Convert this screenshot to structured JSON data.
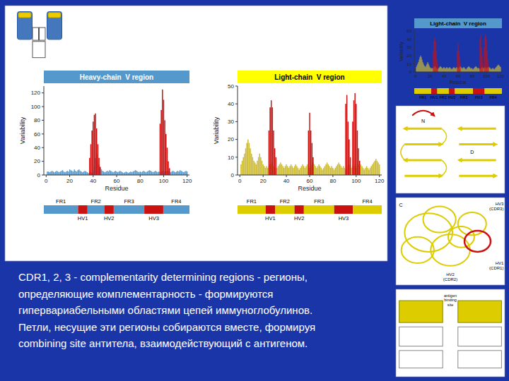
{
  "chart_data": [
    {
      "type": "bar",
      "title": "Heavy-chain  V region",
      "x_label": "Residue",
      "y_label": "Variability",
      "x": [
        1,
        2,
        3,
        4,
        5,
        6,
        7,
        8,
        9,
        10,
        11,
        12,
        13,
        14,
        15,
        16,
        17,
        18,
        19,
        20,
        21,
        22,
        23,
        24,
        25,
        26,
        27,
        28,
        29,
        30,
        31,
        32,
        33,
        34,
        35,
        36,
        37,
        38,
        39,
        40,
        41,
        42,
        43,
        44,
        45,
        46,
        47,
        48,
        49,
        50,
        51,
        52,
        53,
        54,
        55,
        56,
        57,
        58,
        59,
        60,
        61,
        62,
        63,
        64,
        65,
        66,
        67,
        68,
        69,
        70,
        71,
        72,
        73,
        74,
        75,
        76,
        77,
        78,
        79,
        80,
        81,
        82,
        83,
        84,
        85,
        86,
        87,
        88,
        89,
        90,
        91,
        92,
        93,
        94,
        95,
        96,
        97,
        98,
        99,
        100,
        101,
        102,
        103,
        104,
        105,
        106,
        107,
        108,
        109,
        110,
        111,
        112,
        113,
        114,
        115,
        116,
        117,
        118,
        119,
        120
      ],
      "series": [
        {
          "color": "#5599cc",
          "values": [
            5,
            5,
            4,
            5,
            6,
            5,
            4,
            5,
            6,
            5,
            4,
            5,
            6,
            7,
            5,
            4,
            5,
            6,
            5,
            8,
            7,
            6,
            5,
            8,
            6,
            5,
            7,
            8,
            6,
            5,
            4,
            5,
            6,
            5,
            4,
            3,
            5,
            4,
            3,
            5,
            13,
            25,
            30,
            20,
            15,
            10,
            8,
            6,
            5,
            4,
            5,
            6,
            5,
            7,
            6,
            5,
            4,
            5,
            6,
            5,
            4,
            5,
            6,
            5,
            4,
            3,
            4,
            5,
            4,
            3,
            4,
            5,
            4,
            5,
            6,
            7,
            6,
            5,
            4,
            5,
            4,
            5,
            6,
            5,
            4,
            5,
            6,
            7,
            6,
            5,
            4,
            5,
            6,
            5,
            4,
            5,
            4,
            5,
            6,
            5,
            5,
            6,
            5,
            6,
            5,
            4,
            5,
            6,
            5,
            4,
            5,
            6,
            5,
            7,
            6,
            5,
            4,
            5,
            6,
            5
          ]
        },
        {
          "color": "#cc1111",
          "values": [
            0,
            0,
            0,
            0,
            0,
            0,
            0,
            0,
            0,
            0,
            0,
            0,
            0,
            0,
            0,
            0,
            0,
            0,
            0,
            0,
            0,
            0,
            0,
            0,
            0,
            0,
            0,
            0,
            0,
            0,
            0,
            0,
            0,
            0,
            0,
            0,
            25,
            45,
            65,
            78,
            88,
            90,
            68,
            45,
            25,
            12,
            0,
            0,
            0,
            0,
            0,
            0,
            0,
            0,
            0,
            0,
            0,
            0,
            0,
            0,
            0,
            0,
            0,
            0,
            0,
            0,
            0,
            0,
            0,
            0,
            0,
            0,
            0,
            0,
            0,
            0,
            0,
            0,
            0,
            0,
            0,
            0,
            0,
            0,
            0,
            0,
            0,
            0,
            0,
            0,
            0,
            0,
            0,
            0,
            0,
            0,
            75,
            95,
            125,
            110,
            80,
            60,
            40,
            20,
            10,
            0,
            0,
            0,
            0,
            0,
            0,
            0,
            0,
            0,
            0,
            0,
            0,
            0,
            0,
            0
          ]
        }
      ],
      "xlim": [
        -2,
        122
      ],
      "ylim": [
        0,
        130
      ],
      "xticks": [
        0,
        20,
        40,
        60,
        80,
        100,
        120
      ],
      "yticks": [
        0,
        20,
        40,
        60,
        80,
        100,
        120
      ]
    },
    {
      "type": "bar",
      "title": "Light-chain  V region",
      "x_label": "Residue",
      "y_label": "Variability",
      "x": [
        1,
        2,
        3,
        4,
        5,
        6,
        7,
        8,
        9,
        10,
        11,
        12,
        13,
        14,
        15,
        16,
        17,
        18,
        19,
        20,
        21,
        22,
        23,
        24,
        25,
        26,
        27,
        28,
        29,
        30,
        31,
        32,
        33,
        34,
        35,
        36,
        37,
        38,
        39,
        40,
        41,
        42,
        43,
        44,
        45,
        46,
        47,
        48,
        49,
        50,
        51,
        52,
        53,
        54,
        55,
        56,
        57,
        58,
        59,
        60,
        61,
        62,
        63,
        64,
        65,
        66,
        67,
        68,
        69,
        70,
        71,
        72,
        73,
        74,
        75,
        76,
        77,
        78,
        79,
        80,
        81,
        82,
        83,
        84,
        85,
        86,
        87,
        88,
        89,
        90,
        91,
        92,
        93,
        94,
        95,
        96,
        97,
        98,
        99,
        100,
        101,
        102,
        103,
        104,
        105,
        106,
        107,
        108,
        109,
        110,
        111,
        112,
        113,
        114,
        115,
        116,
        117,
        118,
        119,
        120
      ],
      "series": [
        {
          "color": "#ccbb33",
          "values": [
            6,
            8,
            10,
            12,
            15,
            18,
            20,
            18,
            15,
            12,
            10,
            8,
            7,
            6,
            8,
            10,
            12,
            10,
            8,
            6,
            5,
            4,
            5,
            4,
            5,
            6,
            7,
            6,
            5,
            4,
            3,
            4,
            5,
            6,
            7,
            6,
            5,
            4,
            5,
            6,
            5,
            4,
            5,
            6,
            5,
            4,
            5,
            6,
            5,
            4,
            3,
            4,
            5,
            6,
            5,
            4,
            5,
            6,
            5,
            4,
            5,
            6,
            7,
            6,
            5,
            4,
            5,
            6,
            5,
            4,
            3,
            4,
            5,
            6,
            7,
            6,
            5,
            4,
            5,
            4,
            3,
            4,
            5,
            6,
            7,
            6,
            5,
            4,
            5,
            4,
            3,
            4,
            5,
            6,
            5,
            4,
            5,
            6,
            5,
            4,
            5,
            6,
            5,
            6,
            5,
            4,
            3,
            4,
            5,
            4,
            3,
            4,
            5,
            6,
            7,
            8,
            9,
            8,
            7,
            6
          ]
        },
        {
          "color": "#cc1111",
          "values": [
            0,
            0,
            0,
            0,
            0,
            0,
            0,
            0,
            0,
            0,
            0,
            0,
            0,
            0,
            0,
            0,
            0,
            0,
            0,
            0,
            0,
            0,
            0,
            0,
            25,
            38,
            42,
            38,
            25,
            15,
            10,
            0,
            0,
            0,
            0,
            0,
            0,
            0,
            0,
            0,
            0,
            0,
            0,
            0,
            0,
            0,
            0,
            0,
            0,
            0,
            0,
            0,
            0,
            0,
            0,
            0,
            0,
            0,
            25,
            35,
            25,
            18,
            10,
            0,
            0,
            0,
            0,
            0,
            0,
            0,
            0,
            0,
            0,
            0,
            0,
            0,
            0,
            0,
            0,
            0,
            0,
            0,
            0,
            0,
            0,
            0,
            0,
            0,
            0,
            0,
            40,
            45,
            30,
            20,
            10,
            0,
            30,
            42,
            46,
            40,
            25,
            15,
            8,
            0,
            0,
            0,
            0,
            0,
            0,
            0,
            0,
            0,
            0,
            0,
            0,
            0,
            0,
            0,
            0,
            0
          ]
        }
      ],
      "xlim": [
        -2,
        122
      ],
      "ylim": [
        0,
        50
      ],
      "xticks": [
        0,
        20,
        40,
        60,
        80,
        100,
        120
      ],
      "yticks": [
        0,
        10,
        20,
        30,
        40,
        50
      ]
    },
    {
      "type": "bar",
      "title": "Light-chain  V region",
      "x_label": "Residue",
      "y_label": "Variability",
      "x": [
        1,
        2,
        3,
        4,
        5,
        6,
        7,
        8,
        9,
        10,
        11,
        12,
        13,
        14,
        15,
        16,
        17,
        18,
        19,
        20,
        21,
        22,
        23,
        24,
        25,
        26,
        27,
        28,
        29,
        30,
        31,
        32,
        33,
        34,
        35,
        36,
        37,
        38,
        39,
        40,
        41,
        42,
        43,
        44,
        45,
        46,
        47,
        48,
        49,
        50,
        51,
        52,
        53,
        54,
        55,
        56,
        57,
        58,
        59,
        60,
        61,
        62,
        63,
        64,
        65,
        66,
        67,
        68,
        69,
        70,
        71,
        72,
        73,
        74,
        75,
        76,
        77,
        78,
        79,
        80,
        81,
        82,
        83,
        84,
        85,
        86,
        87,
        88,
        89,
        90,
        91,
        92,
        93,
        94,
        95,
        96,
        97,
        98,
        99,
        100,
        101,
        102,
        103,
        104,
        105,
        106,
        107,
        108,
        109,
        110,
        111,
        112,
        113,
        114,
        115,
        116,
        117,
        118,
        119,
        120
      ],
      "series": [
        {
          "color": "#ccbb33",
          "values": [
            6,
            8,
            10,
            12,
            15,
            18,
            20,
            18,
            15,
            12,
            10,
            8,
            7,
            6,
            8,
            10,
            12,
            10,
            8,
            6,
            5,
            4,
            5,
            4,
            5,
            6,
            7,
            6,
            5,
            4,
            3,
            4,
            5,
            6,
            7,
            6,
            5,
            4,
            5,
            6,
            5,
            4,
            5,
            6,
            5,
            4,
            5,
            6,
            5,
            4,
            3,
            4,
            5,
            6,
            5,
            4,
            5,
            6,
            5,
            4,
            5,
            6,
            7,
            6,
            5,
            4,
            5,
            6,
            5,
            4,
            3,
            4,
            5,
            6,
            7,
            6,
            5,
            4,
            5,
            4,
            3,
            4,
            5,
            6,
            7,
            6,
            5,
            4,
            5,
            4,
            3,
            4,
            5,
            6,
            5,
            4,
            5,
            6,
            5,
            4,
            5,
            6,
            5,
            6,
            5,
            4,
            3,
            4,
            5,
            4,
            3,
            4,
            5,
            6,
            7,
            8,
            9,
            8,
            7,
            6
          ]
        },
        {
          "color": "#cc1111",
          "values": [
            0,
            0,
            0,
            0,
            0,
            0,
            0,
            0,
            0,
            0,
            0,
            0,
            0,
            0,
            0,
            0,
            0,
            0,
            0,
            0,
            0,
            0,
            0,
            0,
            25,
            38,
            42,
            38,
            25,
            15,
            10,
            0,
            0,
            0,
            0,
            0,
            0,
            0,
            0,
            0,
            0,
            0,
            0,
            0,
            0,
            0,
            0,
            0,
            0,
            0,
            0,
            0,
            0,
            0,
            0,
            0,
            0,
            0,
            25,
            35,
            25,
            18,
            10,
            0,
            0,
            0,
            0,
            0,
            0,
            0,
            0,
            0,
            0,
            0,
            0,
            0,
            0,
            0,
            0,
            0,
            0,
            0,
            0,
            0,
            0,
            0,
            0,
            0,
            0,
            0,
            40,
            45,
            30,
            20,
            10,
            0,
            30,
            42,
            46,
            40,
            25,
            15,
            8,
            0,
            0,
            0,
            0,
            0,
            0,
            0,
            0,
            0,
            0,
            0,
            0,
            0,
            0,
            0,
            0,
            0
          ]
        }
      ],
      "xlim": [
        -2,
        122
      ],
      "ylim": [
        0,
        50
      ],
      "xticks": [
        0,
        20,
        40,
        60,
        80,
        100,
        120
      ],
      "yticks": [
        0,
        10,
        20,
        30,
        40,
        50
      ]
    },
    {
      "type": "bar",
      "orientation": "horizontal",
      "stacked": true,
      "tick_labels": false,
      "categories": [
        "FR1",
        "HV1",
        "FR2",
        "HV2",
        "FR3",
        "HV3",
        "FR4"
      ],
      "values": [
        0.235,
        0.065,
        0.115,
        0.065,
        0.21,
        0.13,
        0.18
      ],
      "colors": [
        "#5599cc",
        "#cc1111",
        "#5599cc",
        "#cc1111",
        "#5599cc",
        "#cc1111",
        "#5599cc"
      ],
      "xlim": [
        0,
        1
      ]
    },
    {
      "type": "bar",
      "orientation": "horizontal",
      "stacked": true,
      "tick_labels": false,
      "categories": [
        "FR1",
        "HV1",
        "FR2",
        "HV2",
        "FR3",
        "HV3",
        "FR4"
      ],
      "values": [
        0.195,
        0.065,
        0.135,
        0.065,
        0.21,
        0.13,
        0.2
      ],
      "colors": [
        "#ddcc00",
        "#cc1111",
        "#ddcc00",
        "#cc1111",
        "#ddcc00",
        "#cc1111",
        "#ddcc00"
      ],
      "xlim": [
        0,
        1
      ]
    },
    {
      "type": "bar",
      "orientation": "horizontal",
      "stacked": true,
      "tick_labels": false,
      "categories": [
        "FR1",
        "HV1",
        "FR2",
        "HV2",
        "FR3",
        "HV3",
        "FR4"
      ],
      "values": [
        0.195,
        0.065,
        0.135,
        0.065,
        0.21,
        0.13,
        0.2
      ],
      "colors": [
        "#ddcc00",
        "#cc1111",
        "#ddcc00",
        "#cc1111",
        "#ddcc00",
        "#cc1111",
        "#ddcc00"
      ],
      "xlim": [
        0,
        1
      ]
    }
  ],
  "body_text": [
    "CDR1, 2, 3 - complementarity determining regions - регионы,",
    "определяющие комплементарность - формируются",
    "гипервариабельными областями цепей иммуноглобулинов.",
    "Петли, несущие эти регионы собираются вместе, формируя",
    "combining site антитела, взаимодействующий с антигеном."
  ],
  "annotations": [
    "N",
    "D",
    "HV3\n(CDR3)",
    "HV1\n(CDR1)",
    "HV2\n(CDR2)",
    "C",
    "antigen\nbinding\nsite"
  ]
}
